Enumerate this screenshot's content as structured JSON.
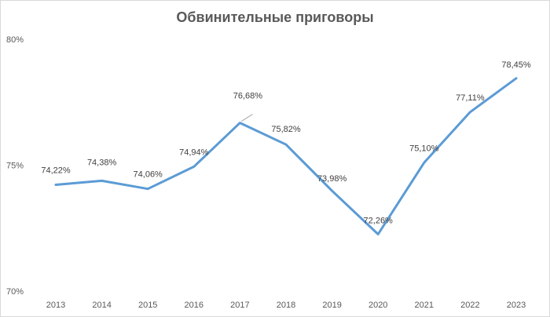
{
  "chart_data": {
    "type": "line",
    "title": "Обвинительные приговоры",
    "x": [
      "2013",
      "2014",
      "2015",
      "2016",
      "2017",
      "2018",
      "2019",
      "2020",
      "2021",
      "2022",
      "2023"
    ],
    "series": [
      {
        "values": [
          74.22,
          74.38,
          74.06,
          74.94,
          76.68,
          75.82,
          73.98,
          72.26,
          75.1,
          77.11,
          78.45
        ],
        "labels": [
          "74,22%",
          "74,38%",
          "74,06%",
          "74,94%",
          "76,68%",
          "75,82%",
          "73,98%",
          "72,26%",
          "75,10%",
          "77,11%",
          "78,45%"
        ]
      }
    ],
    "ylim": [
      70,
      80
    ],
    "yticks": [
      70,
      75,
      80
    ],
    "ytick_labels": [
      "70%",
      "75%",
      "80%"
    ],
    "grid": false,
    "legend": "none",
    "colors": {
      "line": "#5b9bd5",
      "text": "#595959"
    }
  }
}
